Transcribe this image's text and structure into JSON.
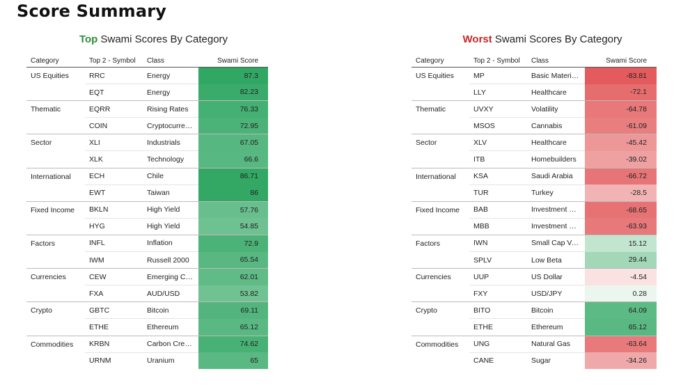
{
  "page_title": "Score Summary",
  "colors": {
    "top_accent": "#2e8b3a",
    "worst_accent": "#c62828"
  },
  "top": {
    "title_accent": "Top",
    "title_rest": " Swami Scores By Category",
    "headers": {
      "category": "Category",
      "symbol": "Top 2 - Symbol",
      "class": "Class",
      "score": "Swami Score"
    },
    "groups": [
      {
        "category": "US Equities",
        "rows": [
          {
            "symbol": "RRC",
            "class": "Energy",
            "score": "87.3"
          },
          {
            "symbol": "EQT",
            "class": "Energy",
            "score": "82.23"
          }
        ]
      },
      {
        "category": "Thematic",
        "rows": [
          {
            "symbol": "EQRR",
            "class": "Rising Rates",
            "score": "76.33"
          },
          {
            "symbol": "COIN",
            "class": "Cryptocurren…",
            "score": "72.95"
          }
        ]
      },
      {
        "category": "Sector",
        "rows": [
          {
            "symbol": "XLI",
            "class": "Industrials",
            "score": "67.05"
          },
          {
            "symbol": "XLK",
            "class": "Technology",
            "score": "66.6"
          }
        ]
      },
      {
        "category": "International",
        "rows": [
          {
            "symbol": "ECH",
            "class": "Chile",
            "score": "86.71"
          },
          {
            "symbol": "EWT",
            "class": "Taiwan",
            "score": "86"
          }
        ]
      },
      {
        "category": "Fixed Income",
        "rows": [
          {
            "symbol": "BKLN",
            "class": "High Yield",
            "score": "57.76"
          },
          {
            "symbol": "HYG",
            "class": "High Yield",
            "score": "54.85"
          }
        ]
      },
      {
        "category": "Factors",
        "rows": [
          {
            "symbol": "INFL",
            "class": "Inflation",
            "score": "72.9"
          },
          {
            "symbol": "IWM",
            "class": "Russell 2000",
            "score": "65.54"
          }
        ]
      },
      {
        "category": "Currencies",
        "rows": [
          {
            "symbol": "CEW",
            "class": "Emerging Cur…",
            "score": "62.01"
          },
          {
            "symbol": "FXA",
            "class": "AUD/USD",
            "score": "53.82"
          }
        ]
      },
      {
        "category": "Crypto",
        "rows": [
          {
            "symbol": "GBTC",
            "class": "Bitcoin",
            "score": "69.11"
          },
          {
            "symbol": "ETHE",
            "class": "Ethereum",
            "score": "65.12"
          }
        ]
      },
      {
        "category": "Commodities",
        "rows": [
          {
            "symbol": "KRBN",
            "class": "Carbon Credits",
            "score": "74.62"
          },
          {
            "symbol": "URNM",
            "class": "Uranium",
            "score": "65"
          }
        ]
      }
    ]
  },
  "worst": {
    "title_accent": "Worst",
    "title_rest": " Swami Scores By Category",
    "headers": {
      "category": "Category",
      "symbol": "Top 2 - Symbol",
      "class": "Class",
      "score": "Swami Score"
    },
    "groups": [
      {
        "category": "US Equities",
        "rows": [
          {
            "symbol": "MP",
            "class": "Basic Materials",
            "score": "-83.81"
          },
          {
            "symbol": "LLY",
            "class": "Healthcare",
            "score": "-72.1"
          }
        ]
      },
      {
        "category": "Thematic",
        "rows": [
          {
            "symbol": "UVXY",
            "class": "Volatility",
            "score": "-64.78"
          },
          {
            "symbol": "MSOS",
            "class": "Cannabis",
            "score": "-61.09"
          }
        ]
      },
      {
        "category": "Sector",
        "rows": [
          {
            "symbol": "XLV",
            "class": "Healthcare",
            "score": "-45.42"
          },
          {
            "symbol": "ITB",
            "class": "Homebuilders",
            "score": "-39.02"
          }
        ]
      },
      {
        "category": "International",
        "rows": [
          {
            "symbol": "KSA",
            "class": "Saudi Arabia",
            "score": "-66.72"
          },
          {
            "symbol": "TUR",
            "class": "Turkey",
            "score": "-28.5"
          }
        ]
      },
      {
        "category": "Fixed Income",
        "rows": [
          {
            "symbol": "BAB",
            "class": "Investment G…",
            "score": "-68.65"
          },
          {
            "symbol": "MBB",
            "class": "Investment G…",
            "score": "-63.93"
          }
        ]
      },
      {
        "category": "Factors",
        "rows": [
          {
            "symbol": "IWN",
            "class": "Small Cap Value",
            "score": "15.12"
          },
          {
            "symbol": "SPLV",
            "class": "Low Beta",
            "score": "29.44"
          }
        ]
      },
      {
        "category": "Currencies",
        "rows": [
          {
            "symbol": "UUP",
            "class": "US Dollar",
            "score": "-4.54"
          },
          {
            "symbol": "FXY",
            "class": "USD/JPY",
            "score": "0.28"
          }
        ]
      },
      {
        "category": "Crypto",
        "rows": [
          {
            "symbol": "BITO",
            "class": "Bitcoin",
            "score": "64.09"
          },
          {
            "symbol": "ETHE",
            "class": "Ethereum",
            "score": "65.12"
          }
        ]
      },
      {
        "category": "Commodities",
        "rows": [
          {
            "symbol": "UNG",
            "class": "Natural Gas",
            "score": "-63.64"
          },
          {
            "symbol": "CANE",
            "class": "Sugar",
            "score": "-34.26"
          }
        ]
      }
    ]
  }
}
